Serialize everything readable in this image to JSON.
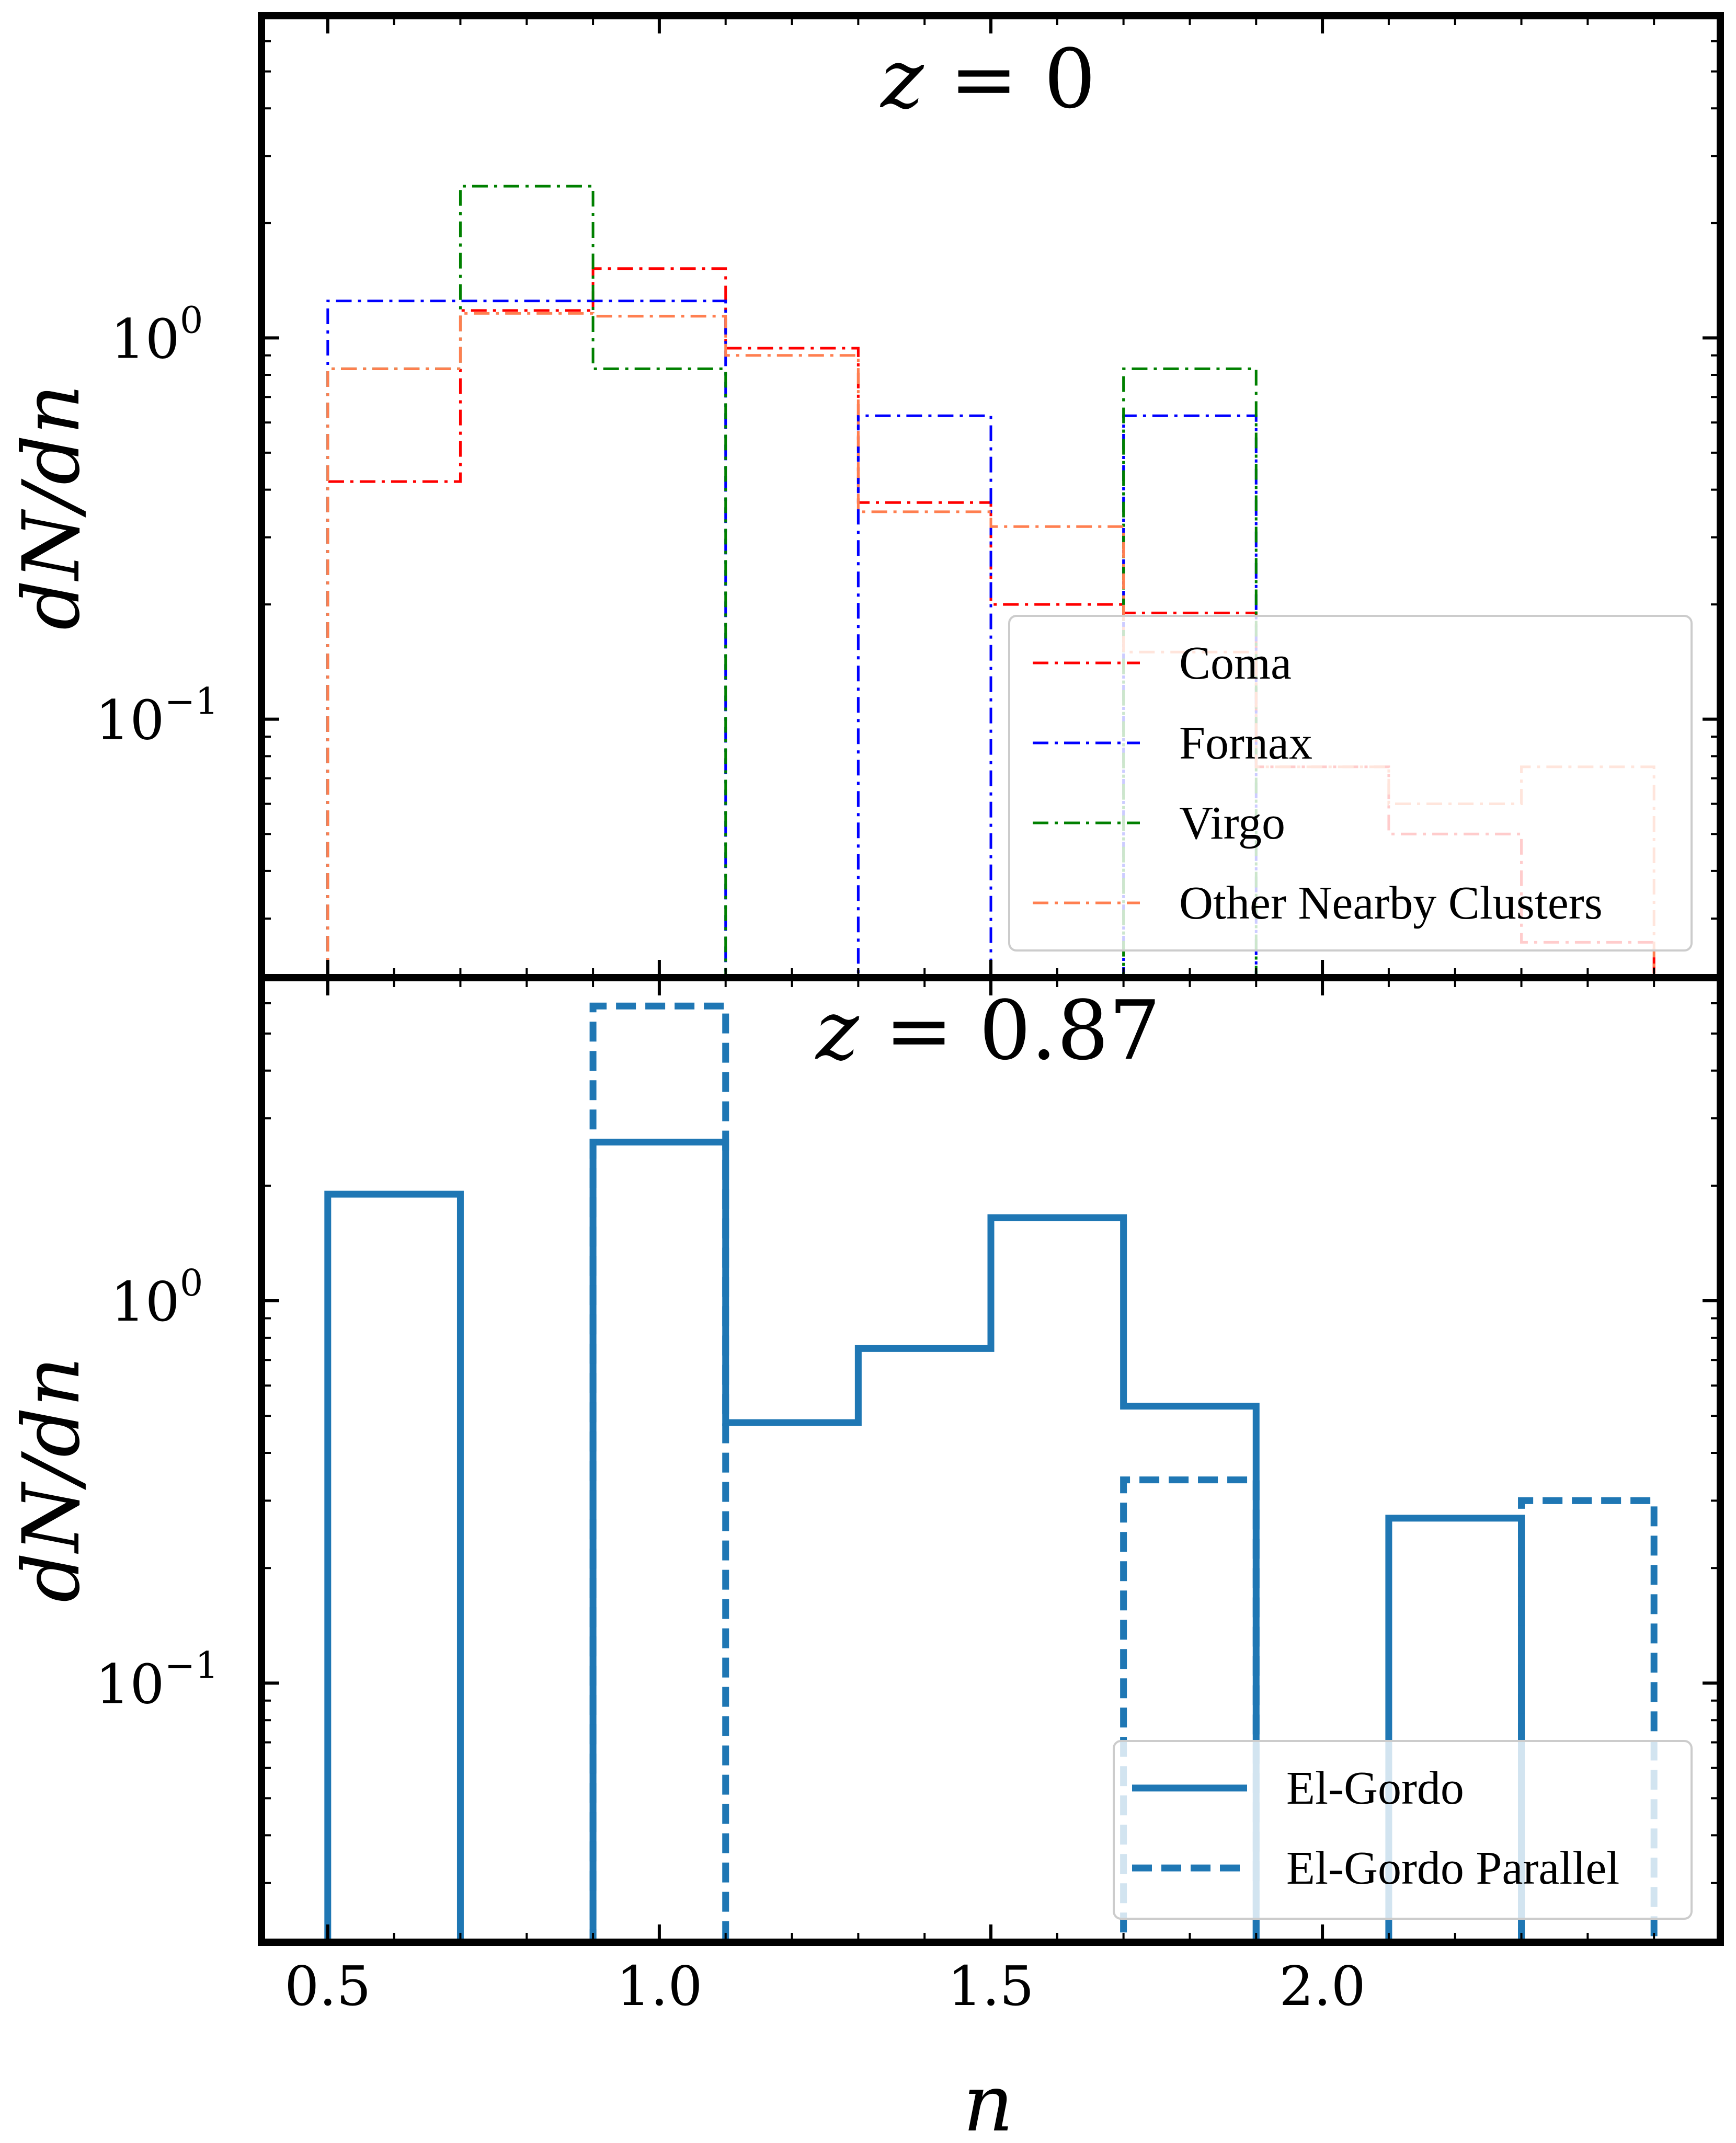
{
  "figure": {
    "xlabel": "n",
    "x_tick_labels": [
      "0.5",
      "1.0",
      "1.5",
      "2.0"
    ],
    "y_tick_labels": [
      "10⁻¹",
      "10⁰"
    ]
  },
  "chart_data": [
    {
      "type": "histogram-step",
      "title": "z = 0",
      "xlabel": "n",
      "ylabel": "dN/dn",
      "yscale": "log",
      "xlim": [
        0.4,
        2.6
      ],
      "ylim": [
        0.021,
        7.0
      ],
      "bin_edges": [
        0.5,
        0.7,
        0.9,
        1.1,
        1.3,
        1.5,
        1.7,
        1.9,
        2.1,
        2.3,
        2.5
      ],
      "legend_position": "lower-right",
      "series": [
        {
          "name": "Coma",
          "color": "#ff0000",
          "linestyle": "dashdot",
          "values": [
            0.42,
            1.18,
            1.52,
            0.94,
            0.37,
            0.2,
            0.19,
            0.075,
            0.05,
            0.026
          ]
        },
        {
          "name": "Fornax",
          "color": "#0000ff",
          "linestyle": "dashdot",
          "values": [
            1.25,
            1.25,
            1.25,
            0,
            0.625,
            0,
            0.625,
            0,
            0,
            0
          ]
        },
        {
          "name": "Virgo",
          "color": "#008000",
          "linestyle": "dashdot",
          "values": [
            0.83,
            2.5,
            0.83,
            0,
            0,
            0,
            0.83,
            0,
            0,
            0
          ]
        },
        {
          "name": "Other Nearby Clusters",
          "color": "#ff7f50",
          "linestyle": "dashdot",
          "values": [
            0.83,
            1.16,
            1.14,
            0.9,
            0.35,
            0.32,
            0.15,
            0.075,
            0.06,
            0.075
          ]
        }
      ]
    },
    {
      "type": "histogram-step",
      "title": "z = 0.87",
      "xlabel": "n",
      "ylabel": "dN/dn",
      "yscale": "log",
      "xlim": [
        0.4,
        2.6
      ],
      "ylim": [
        0.021,
        7.0
      ],
      "bin_edges": [
        0.5,
        0.7,
        0.9,
        1.1,
        1.3,
        1.5,
        1.7,
        1.9,
        2.1,
        2.3,
        2.5
      ],
      "legend_position": "lower-right",
      "series": [
        {
          "name": "El-Gordo",
          "color": "#1f77b4",
          "linestyle": "solid",
          "values": [
            1.9,
            0,
            2.6,
            0.48,
            0.75,
            1.65,
            0.53,
            0,
            0.27,
            0
          ]
        },
        {
          "name": "El-Gordo Parallel",
          "color": "#1f77b4",
          "linestyle": "dashed",
          "values": [
            0,
            0,
            5.9,
            0,
            0,
            0,
            0.34,
            0,
            0,
            0.3
          ]
        }
      ]
    }
  ]
}
